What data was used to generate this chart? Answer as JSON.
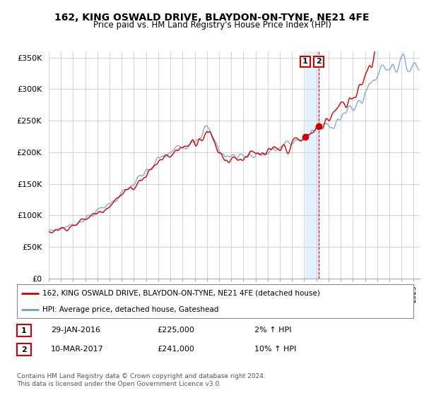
{
  "title": "162, KING OSWALD DRIVE, BLAYDON-ON-TYNE, NE21 4FE",
  "subtitle": "Price paid vs. HM Land Registry's House Price Index (HPI)",
  "ylabel_ticks": [
    "£0",
    "£50K",
    "£100K",
    "£150K",
    "£200K",
    "£250K",
    "£300K",
    "£350K"
  ],
  "ytick_values": [
    0,
    50000,
    100000,
    150000,
    200000,
    250000,
    300000,
    350000
  ],
  "ylim": [
    0,
    360000
  ],
  "xlim_start": 1995.0,
  "xlim_end": 2025.5,
  "legend_line1": "162, KING OSWALD DRIVE, BLAYDON-ON-TYNE, NE21 4FE (detached house)",
  "legend_line2": "HPI: Average price, detached house, Gateshead",
  "line1_color": "#cc0000",
  "line2_color": "#7799cc",
  "purchase1_date": 2016.08,
  "purchase1_price": 225000,
  "purchase2_date": 2017.19,
  "purchase2_price": 241000,
  "annotation1": "1",
  "annotation2": "2",
  "table_row1": [
    "1",
    "29-JAN-2016",
    "£225,000",
    "2% ↑ HPI"
  ],
  "table_row2": [
    "2",
    "10-MAR-2017",
    "£241,000",
    "10% ↑ HPI"
  ],
  "footer": "Contains HM Land Registry data © Crown copyright and database right 2024.\nThis data is licensed under the Open Government Licence v3.0.",
  "background_color": "#ffffff",
  "plot_bg_color": "#ffffff",
  "grid_color": "#cccccc",
  "shade_start": 2016.08,
  "shade_end": 2017.19
}
